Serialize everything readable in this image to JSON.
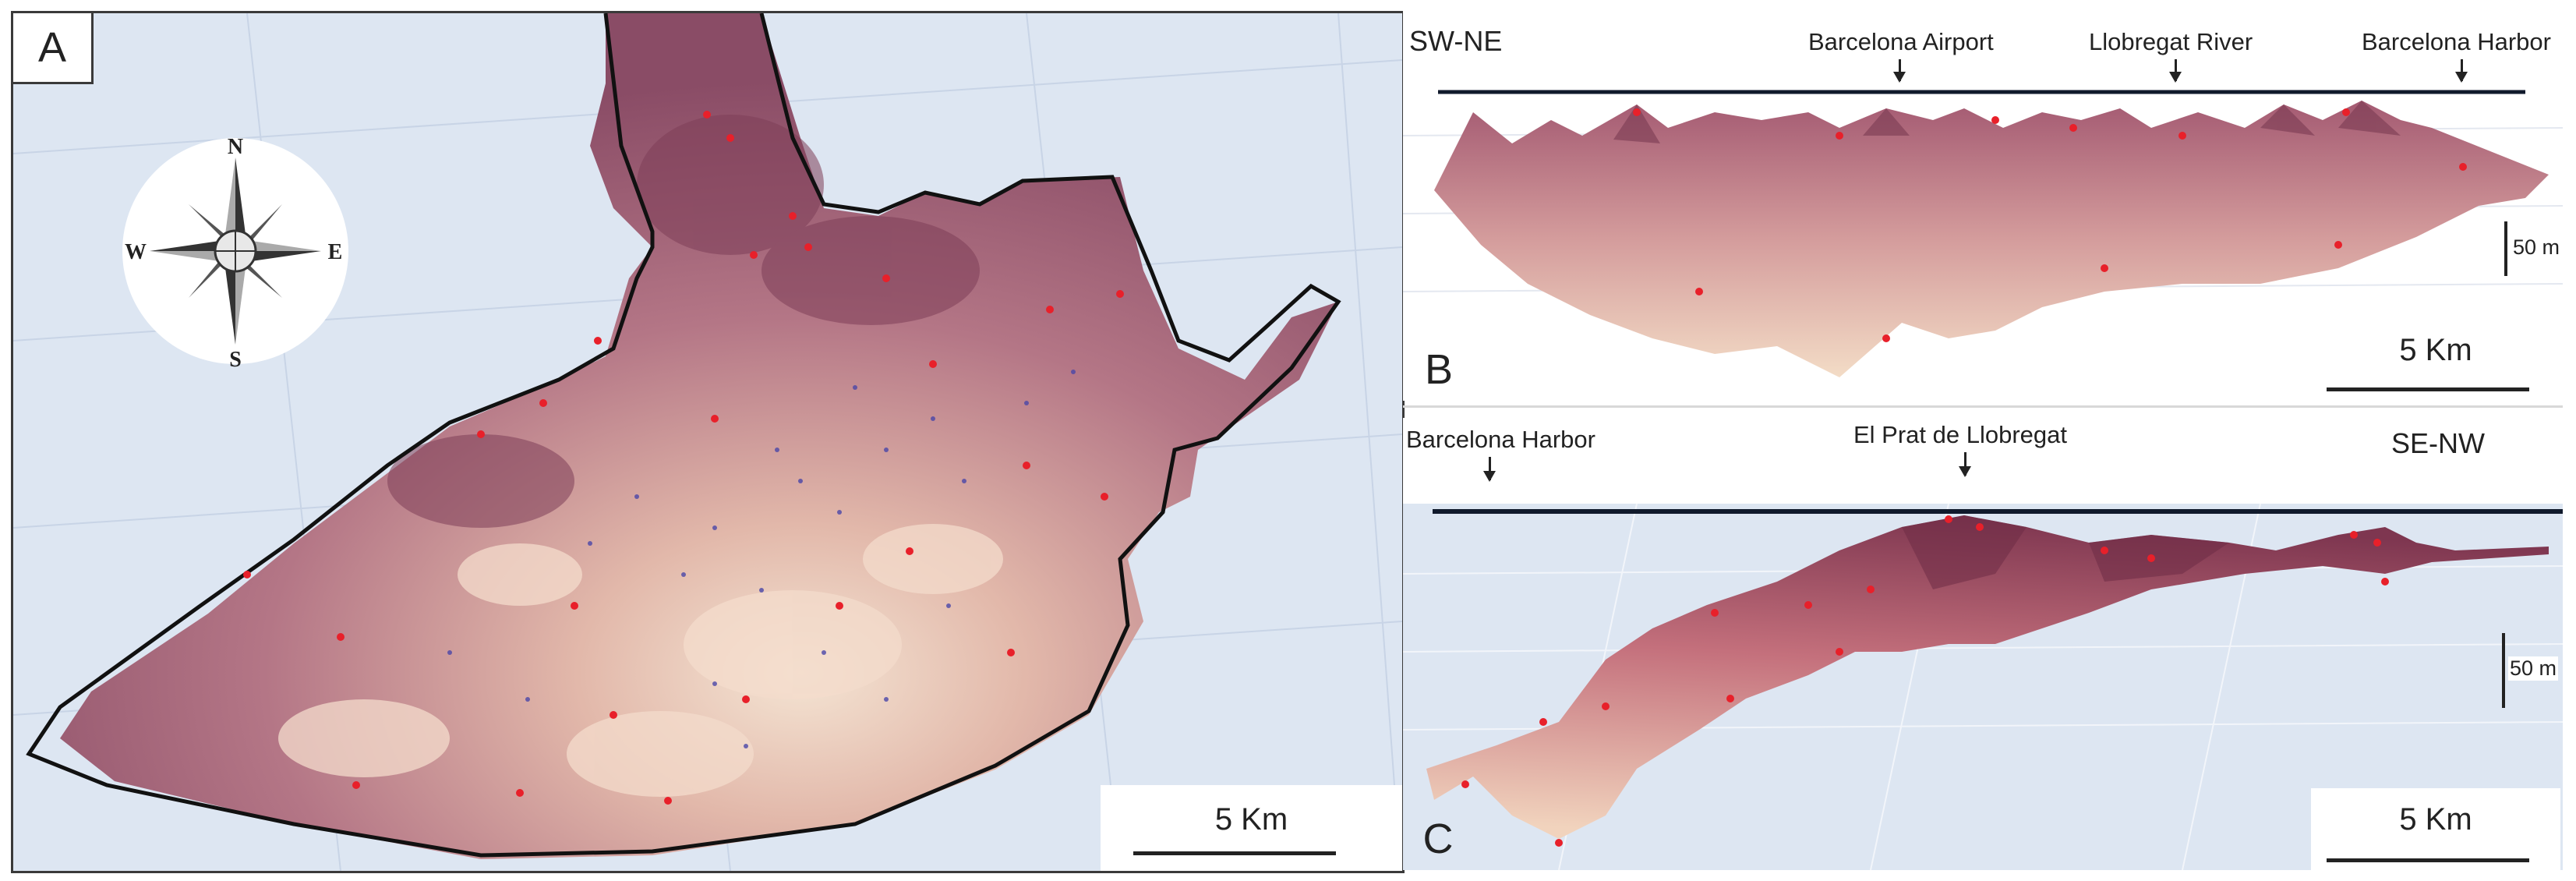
{
  "panel_a": {
    "label": "A",
    "compass": {
      "n": "N",
      "s": "S",
      "e": "E",
      "w": "W"
    },
    "scale_label": "5 Km"
  },
  "panel_b": {
    "label": "B",
    "direction": "SW-NE",
    "callouts": [
      "Barcelona Airport",
      "Llobregat River",
      "Barcelona Harbor"
    ],
    "vertical_scale": "50 m",
    "scale_label": "5 Km"
  },
  "panel_c": {
    "label": "C",
    "direction": "SE-NW",
    "callouts": [
      "Barcelona Harbor",
      "El Prat de Llobregat"
    ],
    "vertical_scale": "50 m",
    "scale_label": "5 Km"
  },
  "colors": {
    "surface_dark": "#7a3a52",
    "surface_mid": "#b77a8a",
    "surface_light": "#f2dccb",
    "background": "#dde6f2",
    "well_red": "#e8202a",
    "well_blue": "#4a46a8",
    "outline": "#111111"
  }
}
